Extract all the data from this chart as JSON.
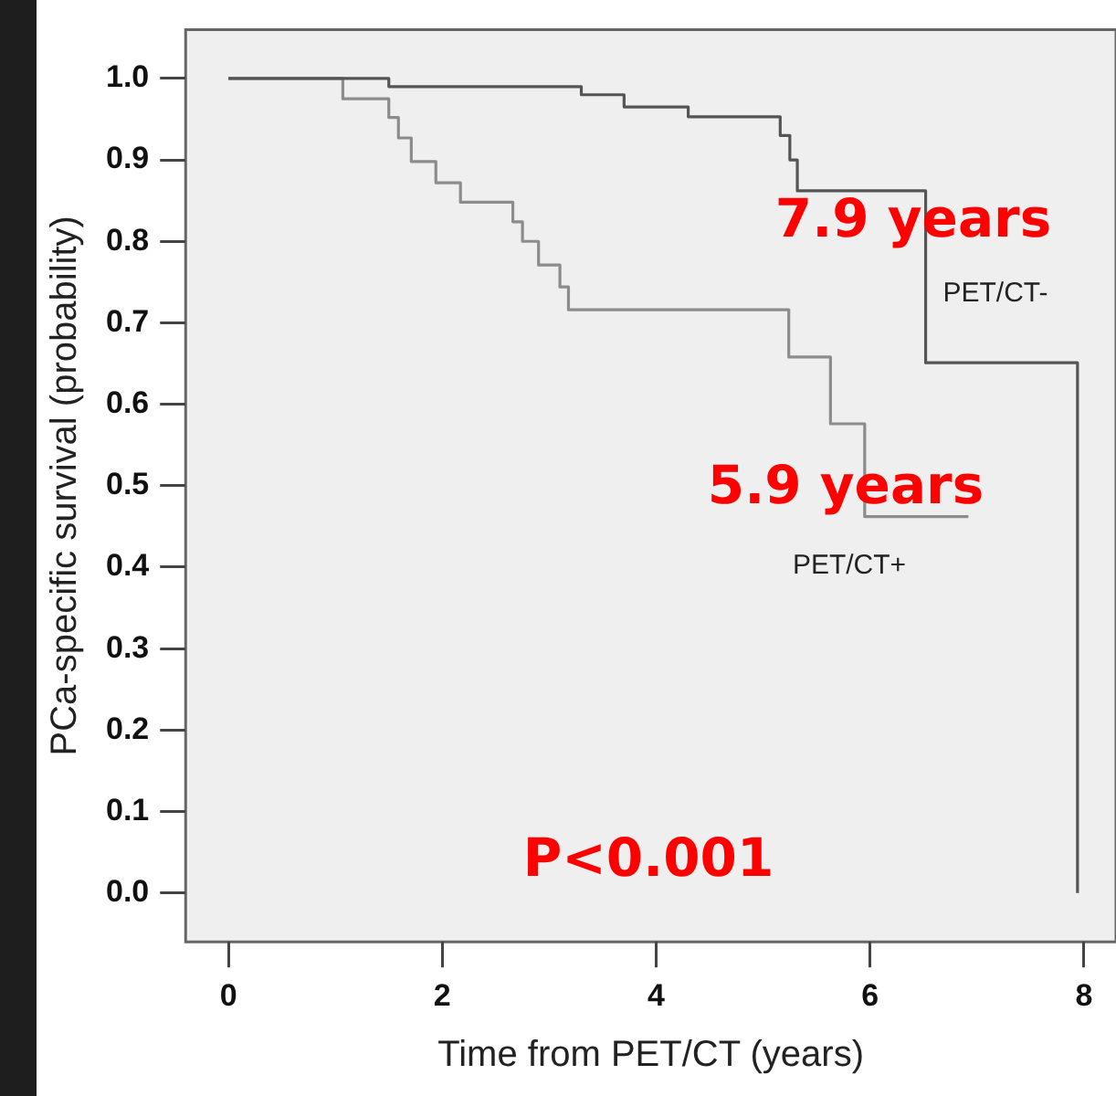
{
  "chart_data": {
    "type": "step",
    "xlabel": "Time from PET/CT (years)",
    "ylabel": "PCa-specific survival (probability)",
    "series": [
      {
        "name": "PET/CT-",
        "color": "#555555",
        "x": [
          0,
          1.5,
          3.3,
          3.7,
          4.3,
          5.16,
          5.25,
          5.32,
          6.52,
          7.94,
          7.94
        ],
        "values": [
          1.0,
          0.99,
          0.98,
          0.965,
          0.953,
          0.93,
          0.9,
          0.862,
          0.651,
          0.651,
          0
        ]
      },
      {
        "name": "PET/CT+",
        "color": "#8c8c8c",
        "x": [
          0,
          1.07,
          1.5,
          1.59,
          1.71,
          1.94,
          2.17,
          2.66,
          2.75,
          2.9,
          3.1,
          3.18,
          5.24,
          5.63,
          5.95,
          6.92
        ],
        "values": [
          1.0,
          0.975,
          0.952,
          0.927,
          0.898,
          0.872,
          0.848,
          0.824,
          0.8,
          0.771,
          0.744,
          0.716,
          0.658,
          0.576,
          0.462,
          0.462
        ]
      }
    ],
    "xlim": [
      -0.4,
      8.3
    ],
    "xticks": [
      0,
      2,
      4,
      6,
      8
    ],
    "ylim": [
      -0.06,
      1.06
    ],
    "yticks": [
      {
        "value": 0,
        "label": "0.0"
      },
      0.1,
      0.2,
      0.3,
      0.4,
      0.5,
      0.6,
      0.7,
      0.8,
      0.9,
      {
        "value": 1,
        "label": "1.0"
      }
    ],
    "grid": false,
    "legend": false,
    "annotations": [
      "7.9 years",
      "5.9 years",
      "P<0.001"
    ]
  }
}
